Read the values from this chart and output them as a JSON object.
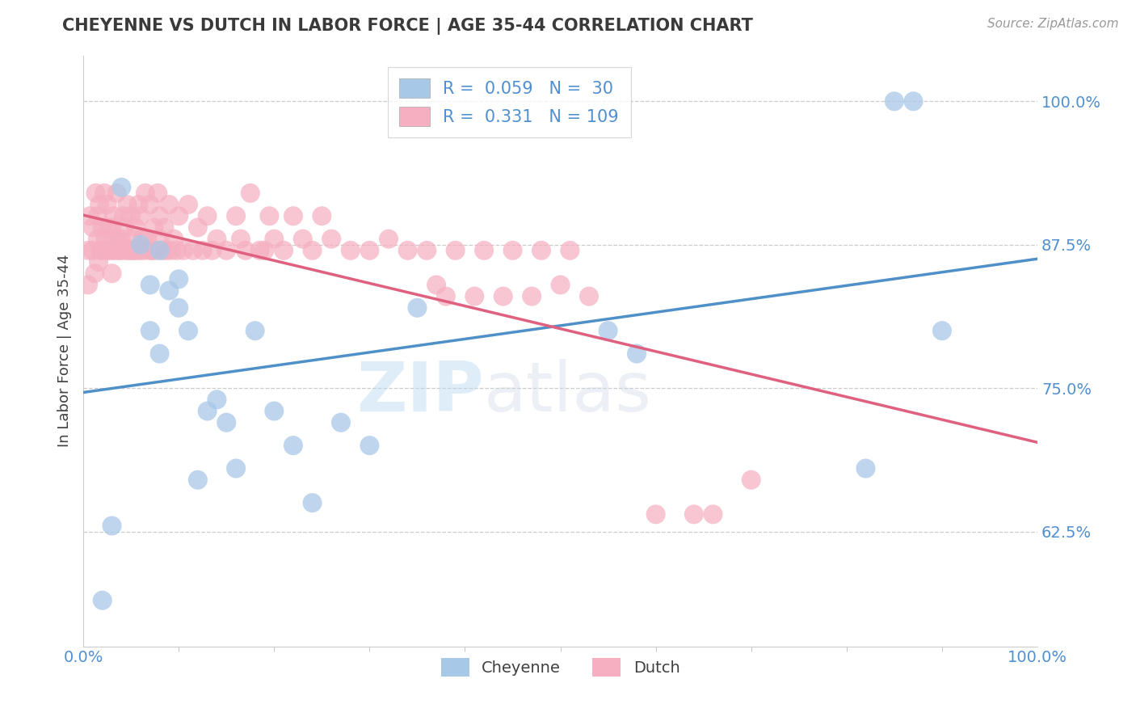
{
  "title": "CHEYENNE VS DUTCH IN LABOR FORCE | AGE 35-44 CORRELATION CHART",
  "source": "Source: ZipAtlas.com",
  "ylabel": "In Labor Force | Age 35-44",
  "xlim": [
    0.0,
    1.0
  ],
  "ylim": [
    0.525,
    1.04
  ],
  "yticks": [
    0.625,
    0.75,
    0.875,
    1.0
  ],
  "ytick_labels": [
    "62.5%",
    "75.0%",
    "87.5%",
    "100.0%"
  ],
  "xtick_labels": [
    "0.0%",
    "100.0%"
  ],
  "cheyenne_R": 0.059,
  "cheyenne_N": 30,
  "dutch_R": 0.331,
  "dutch_N": 109,
  "cheyenne_color": "#a8c8e8",
  "dutch_color": "#f5afc0",
  "cheyenne_line_color": "#5090c8",
  "dutch_line_color": "#e06080",
  "watermark_zip": "ZIP",
  "watermark_atlas": "atlas",
  "background_color": "#ffffff",
  "grid_color": "#cccccc",
  "title_color": "#3a3a3a",
  "axis_label_color": "#404040",
  "tick_label_color": "#5090d0",
  "source_color": "#999999",
  "cheyenne_x": [
    0.02,
    0.03,
    0.04,
    0.06,
    0.07,
    0.07,
    0.08,
    0.08,
    0.09,
    0.1,
    0.1,
    0.11,
    0.12,
    0.13,
    0.14,
    0.15,
    0.16,
    0.18,
    0.2,
    0.22,
    0.24,
    0.27,
    0.3,
    0.35,
    0.55,
    0.58,
    0.82,
    0.85,
    0.87,
    0.9
  ],
  "cheyenne_y": [
    0.565,
    0.63,
    0.925,
    0.875,
    0.84,
    0.8,
    0.87,
    0.78,
    0.835,
    0.82,
    0.845,
    0.8,
    0.67,
    0.73,
    0.74,
    0.72,
    0.68,
    0.8,
    0.73,
    0.7,
    0.65,
    0.72,
    0.7,
    0.82,
    0.8,
    0.78,
    0.68,
    1.0,
    1.0,
    0.8
  ],
  "dutch_x": [
    0.005,
    0.005,
    0.007,
    0.01,
    0.01,
    0.012,
    0.013,
    0.015,
    0.015,
    0.016,
    0.017,
    0.018,
    0.02,
    0.02,
    0.022,
    0.023,
    0.025,
    0.025,
    0.027,
    0.028,
    0.03,
    0.03,
    0.031,
    0.032,
    0.033,
    0.034,
    0.035,
    0.037,
    0.038,
    0.04,
    0.04,
    0.042,
    0.043,
    0.045,
    0.046,
    0.048,
    0.05,
    0.05,
    0.052,
    0.053,
    0.055,
    0.056,
    0.058,
    0.06,
    0.06,
    0.062,
    0.064,
    0.065,
    0.067,
    0.07,
    0.07,
    0.072,
    0.074,
    0.075,
    0.078,
    0.08,
    0.08,
    0.083,
    0.085,
    0.087,
    0.09,
    0.092,
    0.095,
    0.098,
    0.1,
    0.105,
    0.11,
    0.115,
    0.12,
    0.125,
    0.13,
    0.135,
    0.14,
    0.15,
    0.16,
    0.165,
    0.17,
    0.175,
    0.185,
    0.19,
    0.195,
    0.2,
    0.21,
    0.22,
    0.23,
    0.24,
    0.25,
    0.26,
    0.28,
    0.3,
    0.32,
    0.34,
    0.36,
    0.39,
    0.42,
    0.45,
    0.48,
    0.51,
    0.38,
    0.41,
    0.44,
    0.47,
    0.5,
    0.53,
    0.6,
    0.64,
    0.66,
    0.7,
    0.37
  ],
  "dutch_y": [
    0.87,
    0.84,
    0.9,
    0.87,
    0.89,
    0.85,
    0.92,
    0.88,
    0.9,
    0.86,
    0.91,
    0.87,
    0.89,
    0.87,
    0.92,
    0.88,
    0.87,
    0.91,
    0.89,
    0.87,
    0.85,
    0.89,
    0.87,
    0.9,
    0.88,
    0.87,
    0.92,
    0.88,
    0.87,
    0.88,
    0.87,
    0.9,
    0.89,
    0.87,
    0.91,
    0.87,
    0.87,
    0.9,
    0.88,
    0.87,
    0.89,
    0.87,
    0.91,
    0.87,
    0.9,
    0.88,
    0.87,
    0.92,
    0.88,
    0.87,
    0.91,
    0.87,
    0.89,
    0.87,
    0.92,
    0.88,
    0.9,
    0.87,
    0.89,
    0.87,
    0.91,
    0.87,
    0.88,
    0.87,
    0.9,
    0.87,
    0.91,
    0.87,
    0.89,
    0.87,
    0.9,
    0.87,
    0.88,
    0.87,
    0.9,
    0.88,
    0.87,
    0.92,
    0.87,
    0.87,
    0.9,
    0.88,
    0.87,
    0.9,
    0.88,
    0.87,
    0.9,
    0.88,
    0.87,
    0.87,
    0.88,
    0.87,
    0.87,
    0.87,
    0.87,
    0.87,
    0.87,
    0.87,
    0.83,
    0.83,
    0.83,
    0.83,
    0.84,
    0.83,
    0.64,
    0.64,
    0.64,
    0.67,
    0.84
  ]
}
